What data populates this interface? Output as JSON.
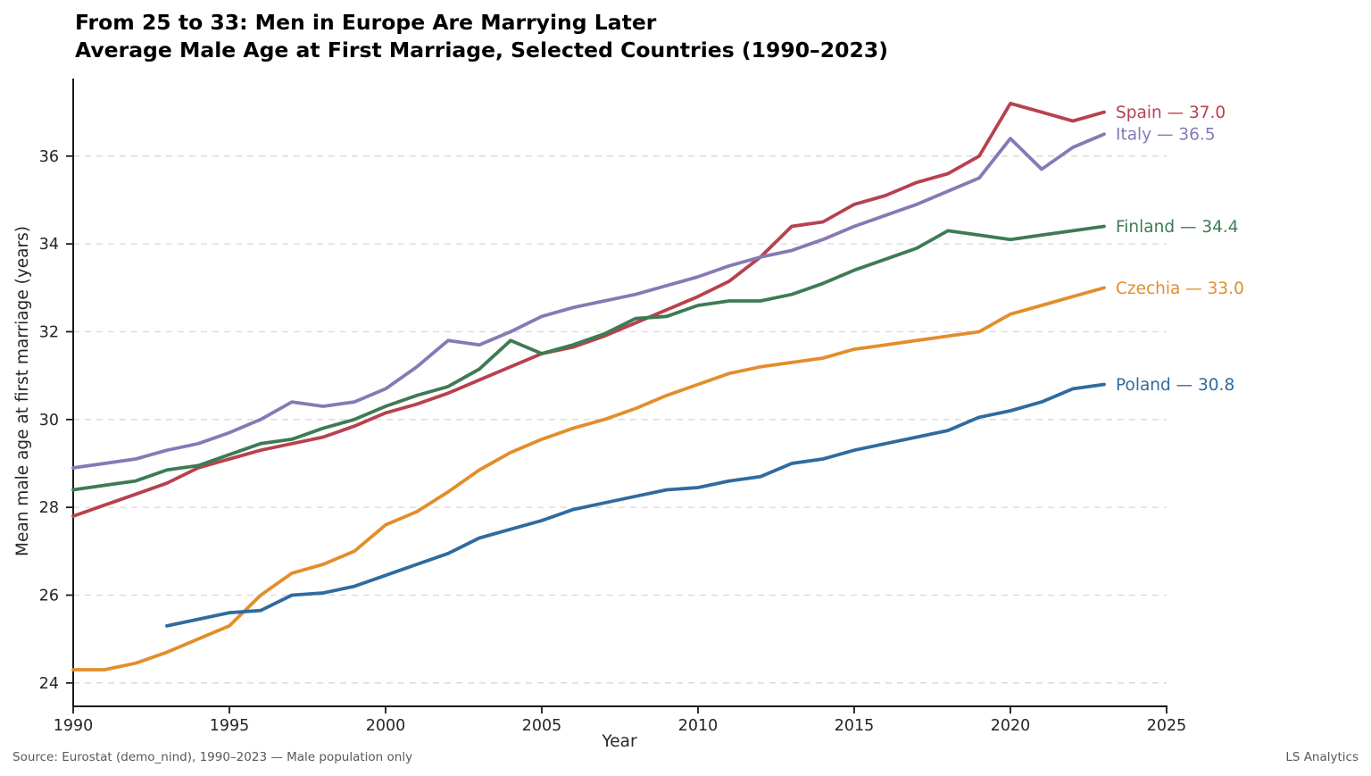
{
  "title": {
    "line1": "From 25 to 33: Men in Europe Are Marrying Later",
    "line2": "Average Male Age at First Marriage, Selected Countries (1990–2023)"
  },
  "footer": {
    "source": "Source: Eurostat (demo_nind), 1990–2023 — Male population only",
    "brand": "LS Analytics"
  },
  "chart_data": {
    "type": "line",
    "title": "From 25 to 33: Men in Europe Are Marrying Later — Average Male Age at First Marriage, Selected Countries (1990–2023)",
    "xlabel": "Year",
    "ylabel": "Mean male age at first marriage (years)",
    "xlim": [
      1990,
      2025
    ],
    "ylim": [
      23.45,
      37.75
    ],
    "x_ticks": [
      1990,
      1995,
      2000,
      2005,
      2010,
      2015,
      2020,
      2025
    ],
    "y_ticks": [
      24,
      26,
      28,
      30,
      32,
      34,
      36
    ],
    "grid": "horizontal-dashed",
    "legend_position": "line-end-labels-right",
    "x": [
      1990,
      1991,
      1992,
      1993,
      1994,
      1995,
      1996,
      1997,
      1998,
      1999,
      2000,
      2001,
      2002,
      2003,
      2004,
      2005,
      2006,
      2007,
      2008,
      2009,
      2010,
      2011,
      2012,
      2013,
      2014,
      2015,
      2016,
      2017,
      2018,
      2019,
      2020,
      2021,
      2022,
      2023
    ],
    "series": [
      {
        "name": "Spain",
        "color": "#b8414f",
        "end_label": "Spain — 37.0",
        "final_value": 37.0,
        "values": [
          27.8,
          28.05,
          28.3,
          28.55,
          28.9,
          29.1,
          29.3,
          29.45,
          29.6,
          29.85,
          30.15,
          30.35,
          30.6,
          30.9,
          31.2,
          31.5,
          31.65,
          31.9,
          32.2,
          32.5,
          32.8,
          33.15,
          33.7,
          34.4,
          34.5,
          34.9,
          35.1,
          35.4,
          35.6,
          36.0,
          37.2,
          37.0,
          36.8,
          37.0
        ]
      },
      {
        "name": "Italy",
        "color": "#8779b5",
        "end_label": "Italy — 36.5",
        "final_value": 36.5,
        "values": [
          28.9,
          29.0,
          29.1,
          29.3,
          29.45,
          29.7,
          30.0,
          30.4,
          30.3,
          30.4,
          30.7,
          31.2,
          31.8,
          31.7,
          32.0,
          32.35,
          32.55,
          32.7,
          32.85,
          33.05,
          33.25,
          33.5,
          33.7,
          33.85,
          34.1,
          34.4,
          34.65,
          34.9,
          35.2,
          35.5,
          36.4,
          35.7,
          36.2,
          36.5
        ]
      },
      {
        "name": "Finland",
        "color": "#3d7b53",
        "end_label": "Finland — 34.4",
        "final_value": 34.4,
        "values": [
          28.4,
          28.5,
          28.6,
          28.85,
          28.95,
          29.2,
          29.45,
          29.55,
          29.8,
          30.0,
          30.3,
          30.55,
          30.75,
          31.15,
          31.8,
          31.5,
          31.7,
          31.95,
          32.3,
          32.35,
          32.6,
          32.7,
          32.7,
          32.85,
          33.1,
          33.4,
          33.65,
          33.9,
          34.3,
          34.2,
          34.1,
          34.2,
          34.3,
          34.4
        ]
      },
      {
        "name": "Czechia",
        "color": "#e38d2c",
        "end_label": "Czechia — 33.0",
        "final_value": 33.0,
        "values": [
          24.3,
          24.3,
          24.45,
          24.7,
          25.0,
          25.3,
          26.0,
          26.5,
          26.7,
          27.0,
          27.6,
          27.9,
          28.35,
          28.85,
          29.25,
          29.55,
          29.8,
          30.0,
          30.25,
          30.55,
          30.8,
          31.05,
          31.2,
          31.3,
          31.4,
          31.6,
          31.7,
          31.8,
          31.9,
          32.0,
          32.4,
          32.6,
          32.8,
          33.0
        ]
      },
      {
        "name": "Poland",
        "color": "#2f6b9f",
        "end_label": "Poland — 30.8",
        "final_value": 30.8,
        "values": [
          null,
          null,
          null,
          25.3,
          25.45,
          25.6,
          25.65,
          26.0,
          26.05,
          26.2,
          26.45,
          26.7,
          26.95,
          27.3,
          27.5,
          27.7,
          27.95,
          28.1,
          28.25,
          28.4,
          28.45,
          28.6,
          28.7,
          29.0,
          29.1,
          29.3,
          29.45,
          29.6,
          29.75,
          30.05,
          30.2,
          30.4,
          30.7,
          30.8
        ]
      }
    ]
  }
}
